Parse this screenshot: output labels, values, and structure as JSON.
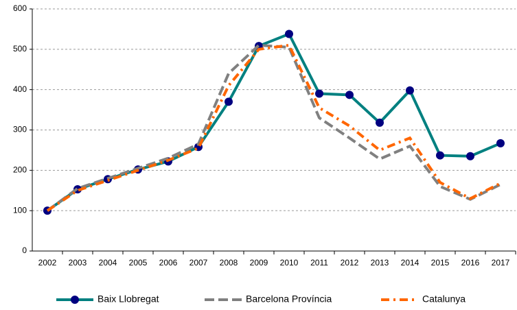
{
  "chart_data": {
    "type": "line",
    "categories": [
      "2002",
      "2003",
      "2004",
      "2005",
      "2006",
      "2007",
      "2008",
      "2009",
      "2010",
      "2011",
      "2012",
      "2013",
      "2014",
      "2015",
      "2016",
      "2017"
    ],
    "series": [
      {
        "name": "Baix Llobregat",
        "color": "#008080",
        "line_style": "solid",
        "marker": "circle",
        "marker_color": "#000080",
        "values": [
          100,
          153,
          178,
          202,
          222,
          258,
          370,
          508,
          538,
          390,
          387,
          318,
          398,
          237,
          235,
          267
        ]
      },
      {
        "name": "Barcelona Província",
        "color": "#808080",
        "line_style": "dashed",
        "marker": "none",
        "values": [
          100,
          155,
          180,
          205,
          230,
          265,
          440,
          510,
          505,
          330,
          280,
          228,
          260,
          160,
          128,
          165
        ]
      },
      {
        "name": "Catalunya",
        "color": "#ff6600",
        "line_style": "dashdot",
        "marker": "none",
        "values": [
          100,
          150,
          175,
          200,
          225,
          255,
          410,
          500,
          510,
          355,
          310,
          250,
          280,
          170,
          130,
          168
        ]
      }
    ],
    "ylim": [
      0,
      600
    ],
    "yticks": [
      0,
      100,
      200,
      300,
      400,
      500,
      600
    ],
    "grid": true,
    "legend": "bottom"
  }
}
